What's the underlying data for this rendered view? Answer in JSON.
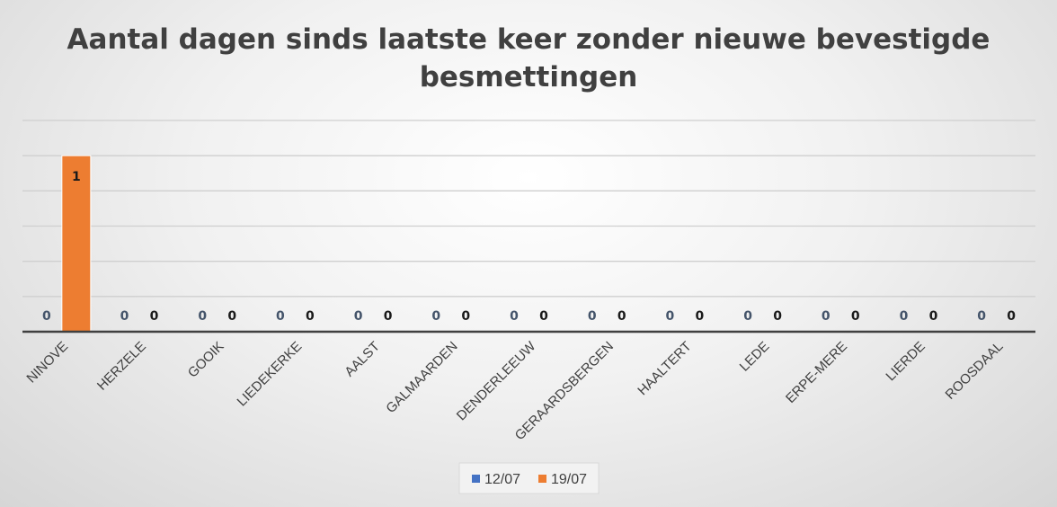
{
  "chart_data": {
    "type": "bar",
    "title": "Aantal dagen sinds laatste keer zonder nieuwe bevestigde besmettingen",
    "title_lines": [
      "Aantal dagen sinds laatste keer zonder nieuwe bevestigde",
      "besmettingen"
    ],
    "categories": [
      "NINOVE",
      "HERZELE",
      "GOOIK",
      "LIEDEKERKE",
      "AALST",
      "GALMAARDEN",
      "DENDERLEEUW",
      "GERAARDSBERGEN",
      "HAALTERT",
      "LEDE",
      "ERPE-MERE",
      "LIERDE",
      "ROOSDAAL"
    ],
    "series": [
      {
        "name": "12/07",
        "color": "#4472c4",
        "label_color": "#44546a",
        "values": [
          0,
          0,
          0,
          0,
          0,
          0,
          0,
          0,
          0,
          0,
          0,
          0,
          0
        ]
      },
      {
        "name": "19/07",
        "color": "#ed7d31",
        "label_color": "#1a1a1a",
        "values": [
          1,
          0,
          0,
          0,
          0,
          0,
          0,
          0,
          0,
          0,
          0,
          0,
          0
        ]
      }
    ],
    "ylim": [
      0,
      1.2
    ],
    "gridline_step": 0.2,
    "grid": true,
    "legend": "bottom",
    "xlabel": "",
    "ylabel": ""
  }
}
